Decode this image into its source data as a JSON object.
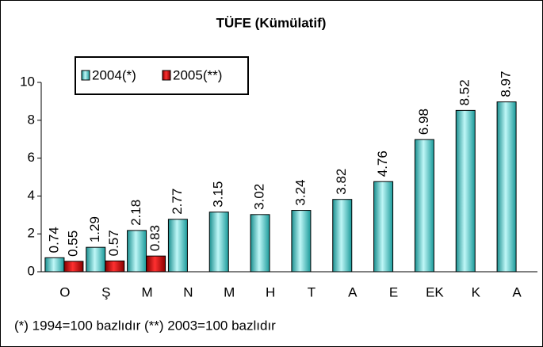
{
  "chart_data": {
    "type": "bar",
    "title": "TÜFE (Kümülatif)",
    "categories": [
      "O",
      "Ş",
      "M",
      "N",
      "M",
      "H",
      "T",
      "A",
      "E",
      "EK",
      "K",
      "A"
    ],
    "series": [
      {
        "name": "2004(*)",
        "color": "#33cccc",
        "values": [
          0.74,
          1.29,
          2.18,
          2.77,
          3.15,
          3.02,
          3.24,
          3.82,
          4.76,
          6.98,
          8.52,
          8.97
        ]
      },
      {
        "name": "2005(**)",
        "color": "#cc0000",
        "values": [
          0.55,
          0.57,
          0.83,
          null,
          null,
          null,
          null,
          null,
          null,
          null,
          null,
          null
        ]
      }
    ],
    "ylim": [
      0,
      10
    ],
    "yticks": [
      0,
      2,
      4,
      6,
      8,
      10
    ],
    "grid": false,
    "legend": "top-left",
    "note": "(*) 1994=100 bazlıdır (**) 2003=100 bazlıdır"
  }
}
